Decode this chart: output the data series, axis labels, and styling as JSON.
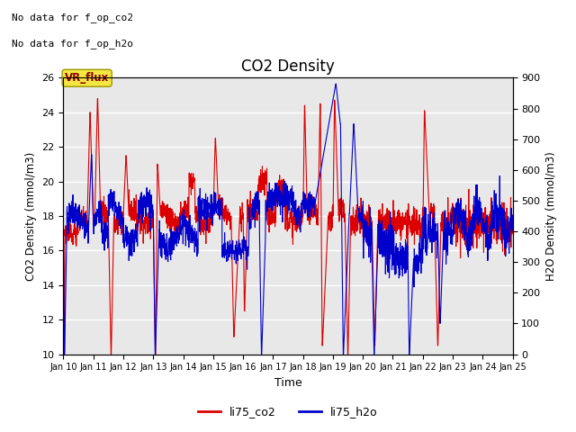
{
  "title": "CO2 Density",
  "xlabel": "Time",
  "ylabel_left": "CO2 Density (mmol/m3)",
  "ylabel_right": "H2O Density (mmol/m3)",
  "annotation_lines": [
    "No data for f_op_co2",
    "No data for f_op_h2o"
  ],
  "vr_flux_label": "VR_flux",
  "legend_labels": [
    "li75_co2",
    "li75_h2o"
  ],
  "co2_color": "#dd0000",
  "h2o_color": "#0000cc",
  "bg_color": "#e8e8e8",
  "ylim_left": [
    10,
    26
  ],
  "ylim_right": [
    0,
    900
  ],
  "xstart": 10,
  "xend": 25,
  "xticks": [
    10,
    11,
    12,
    13,
    14,
    15,
    16,
    17,
    18,
    19,
    20,
    21,
    22,
    23,
    24,
    25
  ],
  "xticklabels": [
    "Jan 10",
    "Jan 11",
    "Jan 12",
    "Jan 13",
    "Jan 14",
    "Jan 15",
    "Jan 16",
    "Jan 17",
    "Jan 18",
    "Jan 19",
    "Jan 20",
    "Jan 21",
    "Jan 22",
    "Jan 23",
    "Jan 24",
    "Jan 25"
  ],
  "yticks_left": [
    10,
    12,
    14,
    16,
    18,
    20,
    22,
    24,
    26
  ],
  "yticks_right": [
    0,
    100,
    200,
    300,
    400,
    500,
    600,
    700,
    800,
    900
  ]
}
